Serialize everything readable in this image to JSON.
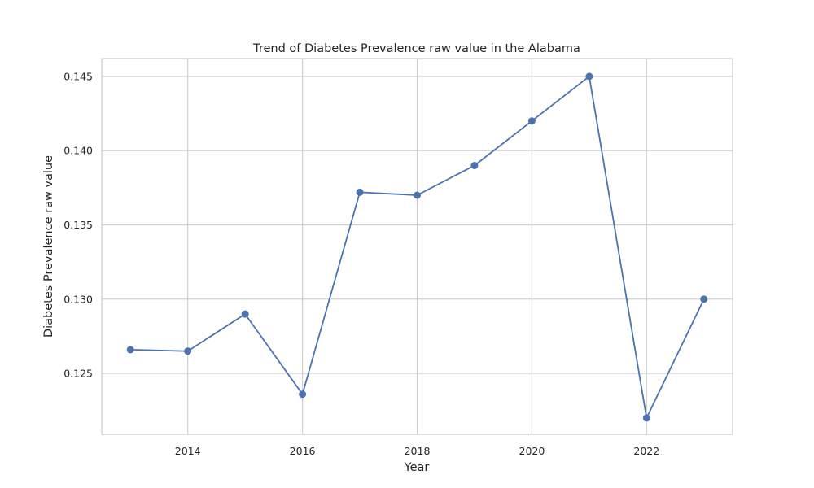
{
  "chart_data": {
    "type": "line",
    "title": "Trend of Diabetes Prevalence raw value in the Alabama",
    "xlabel": "Year",
    "ylabel": "Diabetes Prevalence raw value",
    "x": [
      2013,
      2014,
      2015,
      2016,
      2017,
      2018,
      2019,
      2020,
      2021,
      2022,
      2023
    ],
    "series": [
      {
        "values": [
          0.1266,
          0.1265,
          0.129,
          0.1236,
          0.1372,
          0.137,
          0.139,
          0.142,
          0.145,
          0.122,
          0.13
        ]
      }
    ],
    "xlim": [
      2012.5,
      2023.5
    ],
    "ylim": [
      0.1209,
      0.1462
    ],
    "xticks": [
      2014,
      2016,
      2018,
      2020,
      2022
    ],
    "xtick_labels": [
      "2014",
      "2016",
      "2018",
      "2020",
      "2022"
    ],
    "yticks": [
      0.125,
      0.13,
      0.135,
      0.14,
      0.145
    ],
    "ytick_labels": [
      "0.125",
      "0.130",
      "0.135",
      "0.140",
      "0.145"
    ],
    "grid": true,
    "marker": "circle",
    "line_color": "#4c72b0"
  }
}
